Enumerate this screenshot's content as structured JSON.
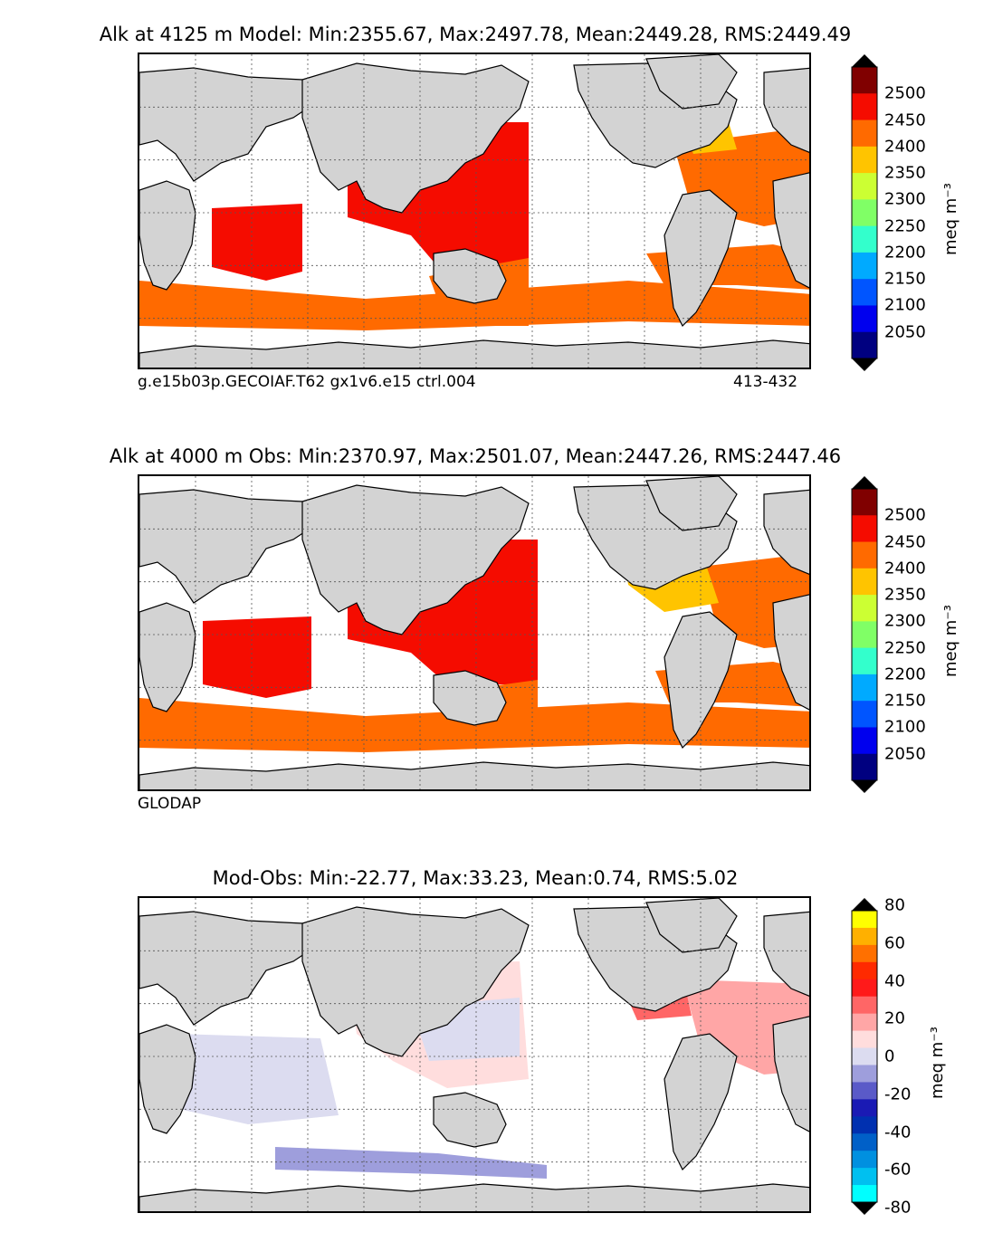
{
  "colors": {
    "land": "#d3d3d3",
    "coast": "#000000",
    "ocean_nodata": "#ffffff",
    "grid": "#555555"
  },
  "panels": [
    {
      "id": "model",
      "title": "Alk at 4125 m Model: Min:2355.67, Max:2497.78, Mean:2449.28, RMS:2449.49",
      "footnote_left": "g.e15b03p.GECOIAF.T62 gx1v6.e15 ctrl.004",
      "footnote_right": "413-432",
      "colorbar": {
        "unit": "meq m⁻³",
        "ticks": [
          "2500",
          "2450",
          "2400",
          "2350",
          "2300",
          "2250",
          "2200",
          "2150",
          "2100",
          "2050"
        ],
        "colors": [
          "#800000",
          "#f50c00",
          "#ff6a00",
          "#ffc400",
          "#ccff33",
          "#80ff66",
          "#33ffcc",
          "#00aaff",
          "#0055ff",
          "#0000ee",
          "#000080"
        ]
      },
      "regions": [
        {
          "name": "north-pacific",
          "color": "#f50c00"
        },
        {
          "name": "indian-ocean",
          "color": "#f50c00"
        },
        {
          "name": "south-pacific",
          "color": "#ff6a00"
        },
        {
          "name": "southern-ocean",
          "color": "#ff6a00"
        },
        {
          "name": "south-atlantic",
          "color": "#ff6a00"
        },
        {
          "name": "north-atlantic",
          "color": "#ff6a00"
        },
        {
          "name": "labrador-basin",
          "color": "#ffc400"
        }
      ]
    },
    {
      "id": "obs",
      "title": "Alk at 4000 m Obs: Min:2370.97, Max:2501.07, Mean:2447.26, RMS:2447.46",
      "footnote_left": "GLODAP",
      "footnote_right": "",
      "colorbar": {
        "unit": "meq m⁻³",
        "ticks": [
          "2500",
          "2450",
          "2400",
          "2350",
          "2300",
          "2250",
          "2200",
          "2150",
          "2100",
          "2050"
        ],
        "colors": [
          "#800000",
          "#f50c00",
          "#ff6a00",
          "#ffc400",
          "#ccff33",
          "#80ff66",
          "#33ffcc",
          "#00aaff",
          "#0055ff",
          "#0000ee",
          "#000080"
        ]
      },
      "regions": [
        {
          "name": "north-pacific",
          "color": "#f50c00"
        },
        {
          "name": "indian-ocean",
          "color": "#f50c00"
        },
        {
          "name": "south-pacific",
          "color": "#ff6a00"
        },
        {
          "name": "southern-ocean",
          "color": "#ff6a00"
        },
        {
          "name": "south-atlantic",
          "color": "#ff6a00"
        },
        {
          "name": "north-atlantic",
          "color": "#ff6a00"
        },
        {
          "name": "western-north-atlantic",
          "color": "#ffc400"
        }
      ]
    },
    {
      "id": "diff",
      "title": "Mod-Obs: Min:-22.77, Max:33.23, Mean:0.74, RMS:5.02",
      "footnote_left": "",
      "footnote_right": "",
      "colorbar": {
        "unit": "meq m⁻³",
        "ticks": [
          "80",
          "60",
          "40",
          "20",
          "0",
          "-20",
          "-40",
          "-60",
          "-80"
        ],
        "colors": [
          "#ffff00",
          "#ffb000",
          "#ff7000",
          "#ff2a00",
          "#ff1a1a",
          "#ff6666",
          "#ffa6a6",
          "#ffdddd",
          "#dcdcf0",
          "#9e9edc",
          "#5a5ac8",
          "#1a1ab4",
          "#0030b0",
          "#0060c8",
          "#0090e0",
          "#00c0f0",
          "#00ffff"
        ]
      },
      "regions": [
        {
          "name": "pacific-positive",
          "color": "#ffdddd"
        },
        {
          "name": "pacific-negative",
          "color": "#dcdcf0"
        },
        {
          "name": "atlantic-positive",
          "color": "#ffa6a6"
        },
        {
          "name": "gulf-positive",
          "color": "#ff6666"
        },
        {
          "name": "southern-negative",
          "color": "#9e9edc"
        },
        {
          "name": "indian-negative",
          "color": "#dcdcf0"
        }
      ]
    }
  ]
}
